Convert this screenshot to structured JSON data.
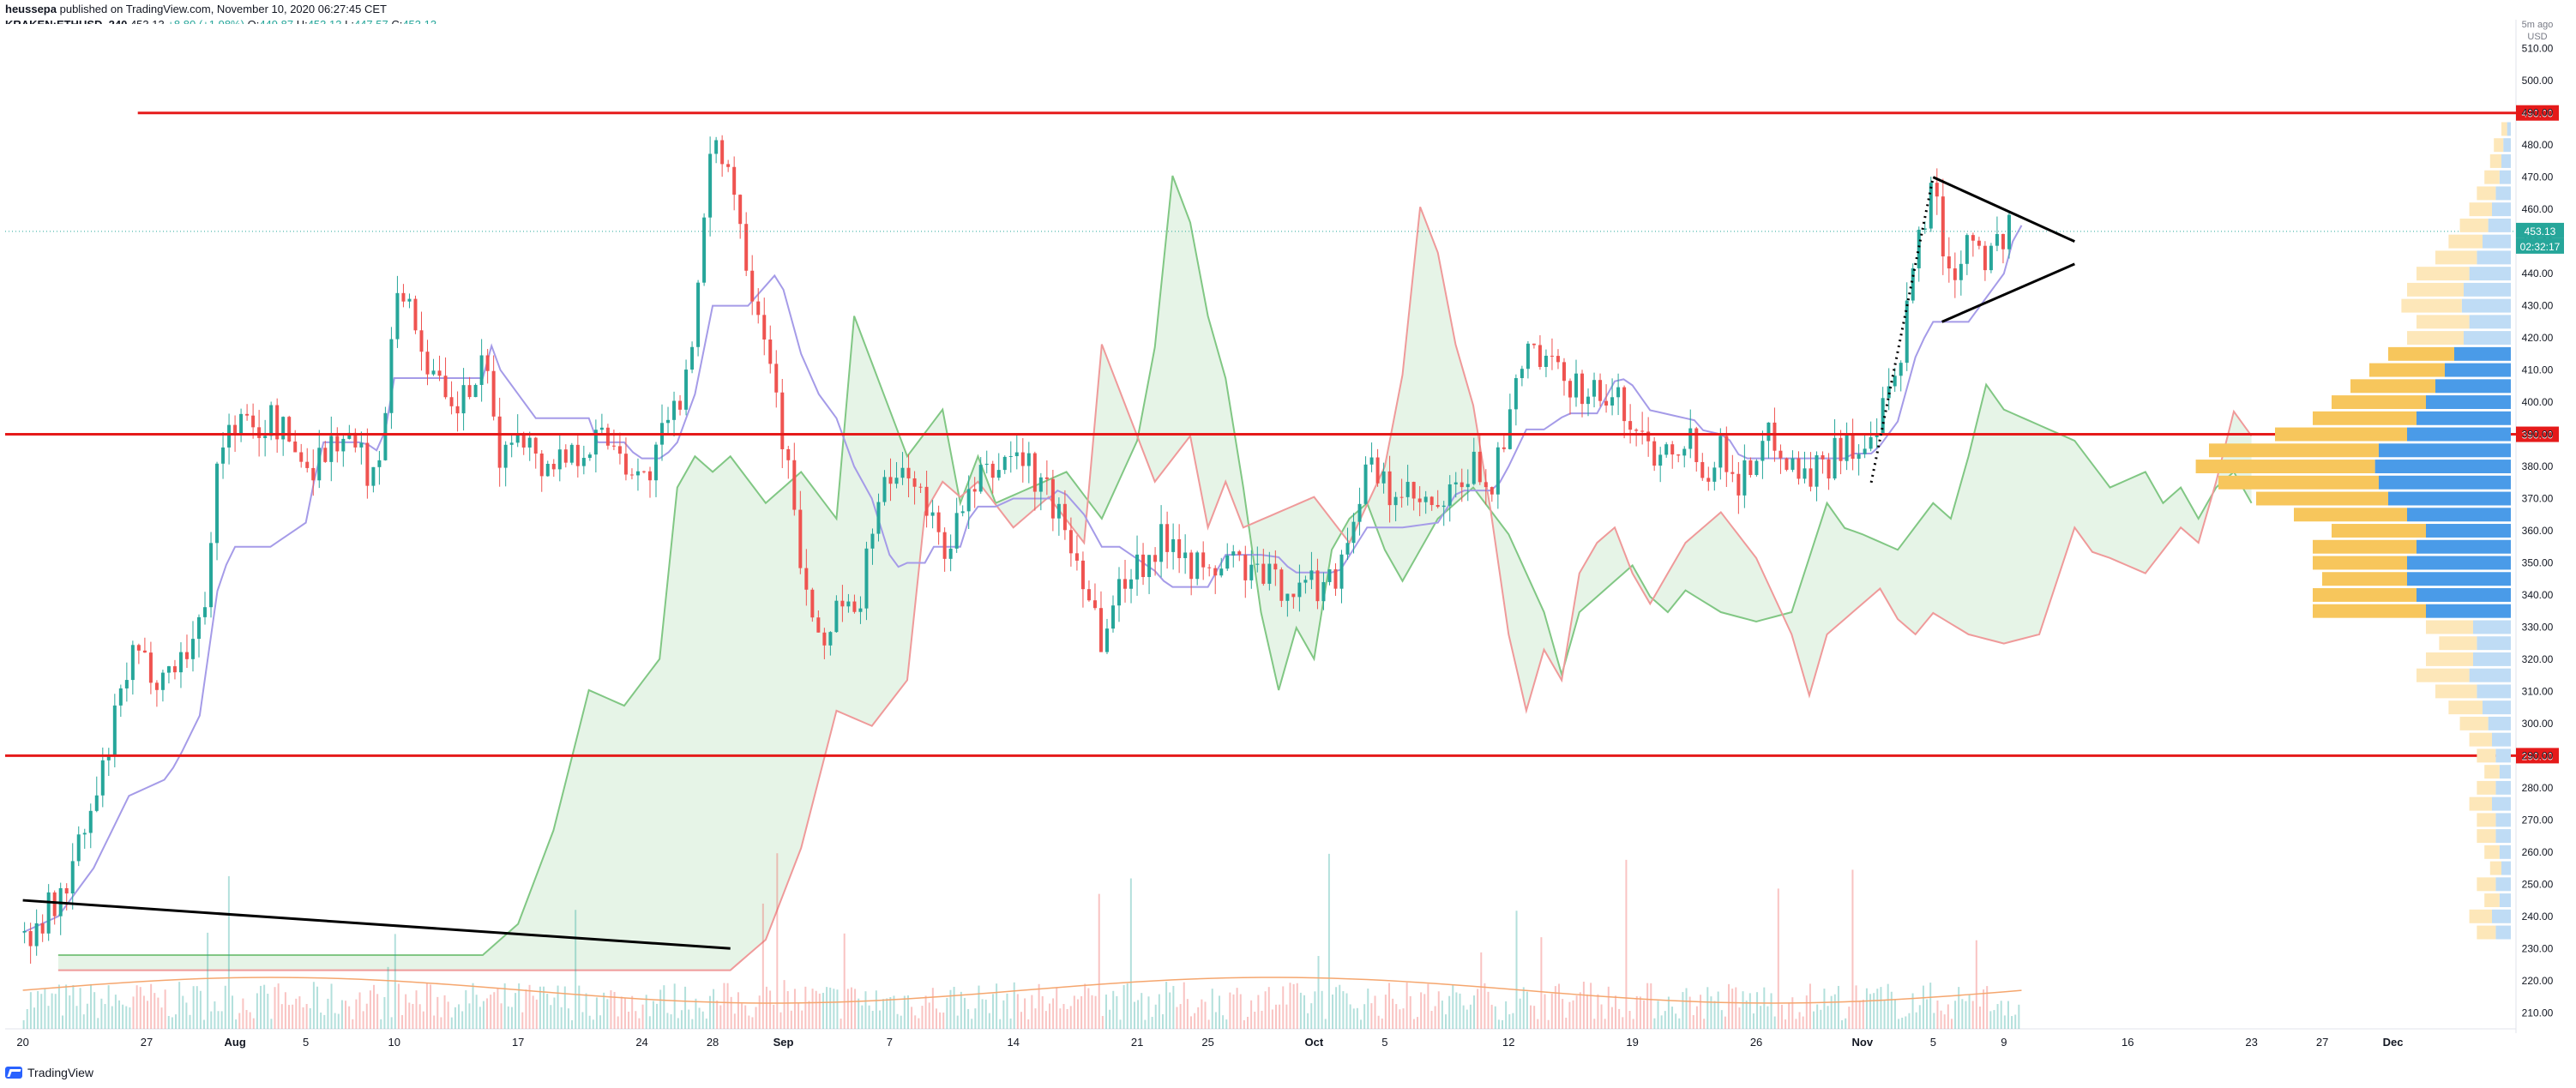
{
  "header": {
    "author": "heussepa",
    "published": "published on TradingView.com, November 10, 2020 06:27:45 CET",
    "symbol": "KRAKEN:ETHUSD, 240",
    "last": "453.13",
    "change": "+8.80 (+1.98%)",
    "o_label": "O:",
    "o": "449.87",
    "h_label": "H:",
    "h": "453.13",
    "l_label": "L:",
    "l": "447.57",
    "c_label": "C:",
    "c": "453.13"
  },
  "footer": {
    "brand": "TradingView"
  },
  "chart_data": {
    "type": "line",
    "title": "KRAKEN:ETHUSD, 240",
    "axis": {
      "currency_label": "USD",
      "timeframe_label": "5m ago",
      "ylim": [
        205,
        515
      ],
      "y_ticks": [
        210,
        220,
        230,
        240,
        250,
        260,
        270,
        280,
        290,
        300,
        310,
        320,
        330,
        340,
        350,
        360,
        370,
        380,
        390,
        400,
        410,
        420,
        430,
        440,
        450,
        460,
        470,
        480,
        490,
        500,
        510
      ],
      "x_ticks": [
        "20",
        "27",
        "Aug",
        "5",
        "10",
        "17",
        "24",
        "28",
        "Sep",
        "7",
        "14",
        "21",
        "25",
        "Oct",
        "5",
        "12",
        "19",
        "26",
        "Nov",
        "5",
        "9",
        "16",
        "23",
        "27",
        "Dec"
      ],
      "x_tick_days": [
        0,
        7,
        12,
        16,
        21,
        28,
        35,
        39,
        43,
        49,
        56,
        63,
        67,
        73,
        77,
        84,
        91,
        98,
        104,
        108,
        112,
        119,
        126,
        130,
        134
      ],
      "xlim_days": [
        -1,
        141
      ]
    },
    "x_unit": "days since Jul 20",
    "price_series": {
      "name": "ETHUSD",
      "x": [
        0,
        2,
        4,
        6,
        8,
        10,
        11,
        12,
        13,
        14,
        16,
        18,
        20,
        21,
        22,
        24,
        26,
        27,
        28,
        29,
        31,
        33,
        35,
        37,
        38,
        39,
        40,
        41,
        42,
        43,
        44,
        45,
        46,
        47,
        48,
        49,
        50,
        51,
        52,
        54,
        56,
        58,
        60,
        61,
        62,
        63,
        64,
        65,
        66,
        67,
        68,
        70,
        72,
        74,
        76,
        77,
        78,
        80,
        82,
        83,
        84,
        85,
        86,
        88,
        90,
        92,
        94,
        95,
        96,
        97,
        98,
        99,
        100,
        101,
        102,
        103,
        104,
        105,
        106,
        107,
        107.5,
        108,
        108.5,
        109,
        110,
        111,
        112,
        112.5
      ],
      "y": [
        235,
        245,
        275,
        320,
        315,
        330,
        385,
        395,
        390,
        395,
        380,
        390,
        375,
        440,
        425,
        395,
        410,
        380,
        395,
        380,
        385,
        390,
        375,
        400,
        430,
        485,
        470,
        440,
        420,
        385,
        345,
        320,
        340,
        330,
        365,
        375,
        380,
        365,
        355,
        375,
        385,
        370,
        345,
        325,
        345,
        350,
        355,
        360,
        350,
        345,
        352,
        345,
        342,
        345,
        380,
        372,
        370,
        365,
        380,
        375,
        395,
        418,
        410,
        405,
        400,
        385,
        390,
        380,
        385,
        375,
        385,
        390,
        380,
        378,
        382,
        390,
        380,
        395,
        410,
        450,
        460,
        470,
        445,
        440,
        455,
        445,
        452,
        453.13
      ]
    },
    "markers": {
      "current_price": "453.13",
      "countdown": "02:32:17"
    },
    "horizontal_levels": [
      {
        "value": 490,
        "label": "490.00",
        "color": "#e51a1a"
      },
      {
        "value": 390,
        "label": "390.00",
        "color": "#e51a1a"
      },
      {
        "value": 290,
        "label": "290.00",
        "color": "#e51a1a"
      }
    ],
    "trendline": {
      "x": [
        0,
        40
      ],
      "y": [
        245,
        230
      ]
    },
    "triangle": {
      "apex_x": 108,
      "top_y": 470,
      "bottom_y": 425,
      "end_x": 116,
      "end_upper": 450,
      "end_lower": 443
    },
    "dotted_line": {
      "x": [
        104.5,
        108
      ],
      "y": [
        375,
        470
      ]
    },
    "volume_profile": {
      "prices": [
        235,
        240,
        245,
        250,
        255,
        260,
        265,
        270,
        275,
        280,
        285,
        290,
        295,
        300,
        305,
        310,
        315,
        320,
        325,
        330,
        335,
        340,
        345,
        350,
        355,
        360,
        365,
        370,
        375,
        380,
        385,
        390,
        395,
        400,
        405,
        410,
        415,
        420,
        425,
        430,
        435,
        440,
        445,
        450,
        455,
        460,
        465,
        470,
        475,
        480,
        485
      ],
      "buy": [
        0.1,
        0.12,
        0.08,
        0.1,
        0.06,
        0.08,
        0.1,
        0.1,
        0.12,
        0.1,
        0.08,
        0.1,
        0.12,
        0.15,
        0.18,
        0.22,
        0.28,
        0.25,
        0.2,
        0.25,
        0.6,
        0.55,
        0.45,
        0.5,
        0.55,
        0.5,
        0.6,
        0.7,
        0.85,
        0.95,
        0.9,
        0.7,
        0.55,
        0.5,
        0.45,
        0.4,
        0.35,
        0.3,
        0.28,
        0.32,
        0.3,
        0.28,
        0.22,
        0.18,
        0.15,
        0.12,
        0.1,
        0.08,
        0.06,
        0.05,
        0.03
      ],
      "sell": [
        0.08,
        0.1,
        0.06,
        0.08,
        0.05,
        0.06,
        0.08,
        0.08,
        0.1,
        0.08,
        0.06,
        0.08,
        0.1,
        0.12,
        0.15,
        0.18,
        0.22,
        0.2,
        0.18,
        0.2,
        0.45,
        0.5,
        0.55,
        0.55,
        0.5,
        0.45,
        0.55,
        0.65,
        0.7,
        0.72,
        0.7,
        0.55,
        0.5,
        0.45,
        0.4,
        0.35,
        0.3,
        0.25,
        0.22,
        0.26,
        0.25,
        0.22,
        0.18,
        0.15,
        0.12,
        0.1,
        0.08,
        0.06,
        0.05,
        0.04,
        0.02
      ]
    },
    "colors": {
      "up": "#26a69a",
      "down": "#ef5350",
      "level": "#e51a1a",
      "tenkan": "#a59be8",
      "kijun_up": "#81c784",
      "kijun_down": "#ef9a9a",
      "cloud_green": "#c8e6c9",
      "cloud_red": "#ffcdd2",
      "vol_up": "#f7c65c",
      "vol_down": "#4a9be8",
      "vp_up_light": "#fde7b9",
      "vp_down_light": "#bfdcf5"
    }
  }
}
